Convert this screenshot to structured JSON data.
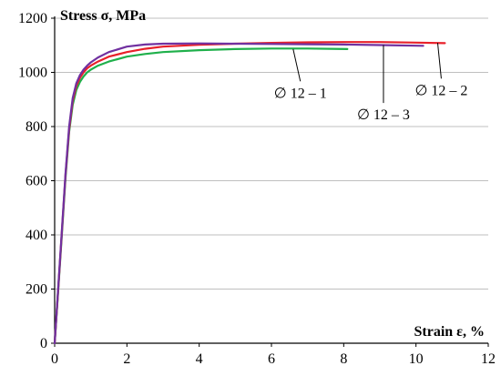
{
  "chart_data": {
    "type": "line",
    "ylabel": "Stress σ, MPa",
    "xlabel": "Strain ε, %",
    "xlim": [
      0,
      12
    ],
    "ylim": [
      0,
      1200
    ],
    "xticks": [
      0,
      2,
      4,
      6,
      8,
      10,
      12
    ],
    "yticks": [
      0,
      200,
      400,
      600,
      800,
      1000,
      1200
    ],
    "grid": true,
    "series": [
      {
        "name": "∅ 12 – 1",
        "color": "#1fb04b",
        "x": [
          0,
          0.1,
          0.2,
          0.3,
          0.4,
          0.5,
          0.6,
          0.7,
          0.8,
          0.9,
          1.0,
          1.2,
          1.5,
          2.0,
          2.5,
          3.0,
          4.0,
          5.0,
          6.0,
          7.0,
          8.1
        ],
        "y": [
          0,
          200,
          400,
          610,
          780,
          880,
          935,
          965,
          985,
          1000,
          1010,
          1025,
          1040,
          1058,
          1068,
          1075,
          1082,
          1086,
          1088,
          1088,
          1086
        ]
      },
      {
        "name": "∅ 12 – 2",
        "color": "#e8202a",
        "x": [
          0,
          0.1,
          0.2,
          0.3,
          0.4,
          0.5,
          0.6,
          0.7,
          0.8,
          0.9,
          1.0,
          1.2,
          1.5,
          2.0,
          2.5,
          3.0,
          4.0,
          5.0,
          6.0,
          7.0,
          8.0,
          9.0,
          10.0,
          10.8
        ],
        "y": [
          0,
          205,
          410,
          620,
          790,
          895,
          950,
          980,
          1000,
          1015,
          1025,
          1040,
          1058,
          1075,
          1087,
          1095,
          1102,
          1106,
          1109,
          1111,
          1112,
          1112,
          1110,
          1108
        ]
      },
      {
        "name": "∅ 12 – 3",
        "color": "#7030a0",
        "x": [
          0,
          0.1,
          0.2,
          0.3,
          0.4,
          0.5,
          0.6,
          0.7,
          0.8,
          0.9,
          1.0,
          1.2,
          1.5,
          2.0,
          2.5,
          3.0,
          4.0,
          5.0,
          6.0,
          7.0,
          8.0,
          9.0,
          10.2
        ],
        "y": [
          0,
          210,
          415,
          625,
          800,
          905,
          960,
          990,
          1010,
          1025,
          1037,
          1055,
          1075,
          1095,
          1103,
          1106,
          1107,
          1106,
          1105,
          1104,
          1103,
          1101,
          1098
        ]
      }
    ],
    "annotations": [
      {
        "text": "∅ 12 – 1",
        "series": 0,
        "at": [
          6.6,
          1086
        ],
        "label_at": [
          6.8,
          920
        ]
      },
      {
        "text": "∅ 12 – 3",
        "series": 2,
        "at": [
          9.1,
          1101
        ],
        "label_at": [
          9.1,
          840
        ]
      },
      {
        "text": "∅ 12 – 2",
        "series": 1,
        "at": [
          10.6,
          1109
        ],
        "label_at": [
          10.7,
          930
        ]
      }
    ]
  }
}
